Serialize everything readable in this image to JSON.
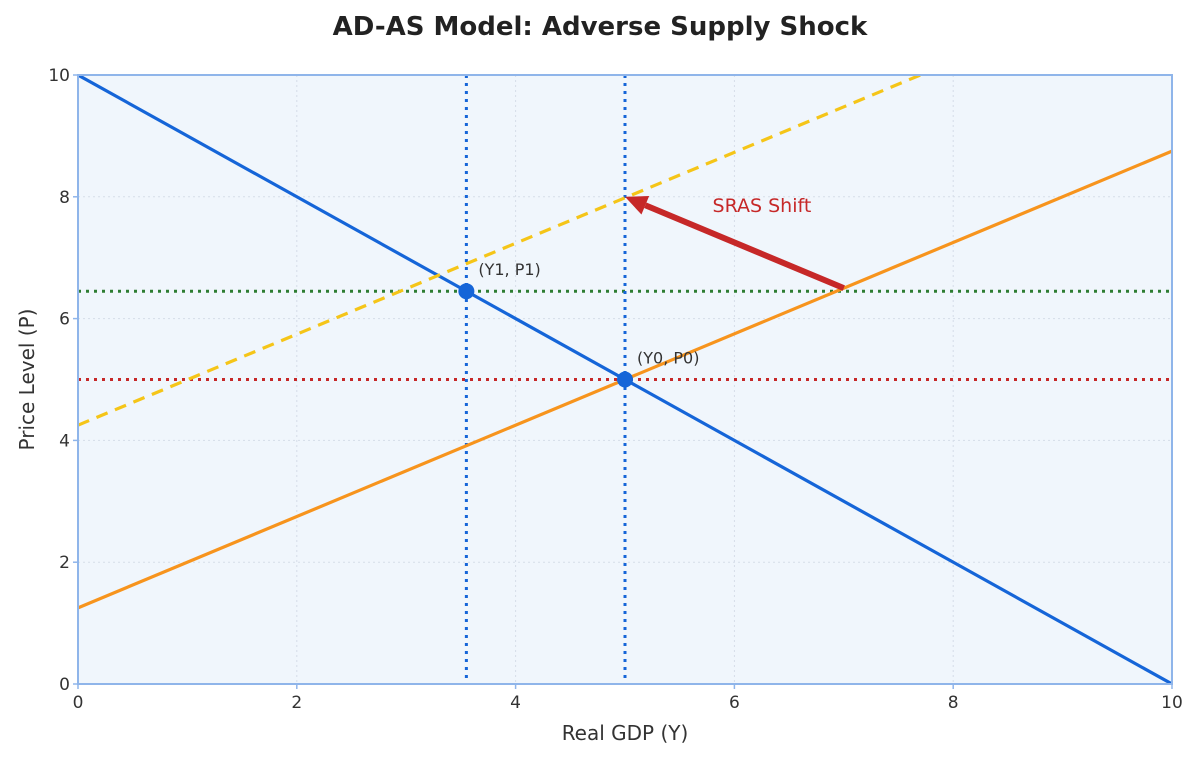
{
  "chart_data": {
    "type": "line",
    "title": "AD-AS Model: Adverse Supply Shock",
    "xlabel": "Real GDP (Y)",
    "ylabel": "Price Level (P)",
    "xlim": [
      0,
      10
    ],
    "ylim": [
      0,
      10
    ],
    "x_ticks": [
      "0",
      "2",
      "4",
      "6",
      "8",
      "10"
    ],
    "y_ticks": [
      "0",
      "2",
      "4",
      "6",
      "8",
      "10"
    ],
    "grid": true,
    "legend": "none",
    "series": [
      {
        "color": "#1565d8",
        "style": "solid",
        "x": [
          0,
          10
        ],
        "y": [
          10,
          0
        ]
      },
      {
        "color": "#f7941d",
        "style": "solid",
        "x": [
          0,
          10
        ],
        "y": [
          1.25,
          8.75
        ]
      },
      {
        "color": "#f5c518",
        "style": "dashed",
        "x": [
          0,
          7.7
        ],
        "y": [
          4.25,
          10
        ]
      }
    ],
    "reference_lines": [
      {
        "orientation": "horizontal",
        "value": 5.0,
        "color": "#c62828",
        "style": "dotted"
      },
      {
        "orientation": "horizontal",
        "value": 6.45,
        "color": "#2e7d32",
        "style": "dotted"
      },
      {
        "orientation": "vertical",
        "value": 5.0,
        "color": "#1565d8",
        "style": "dotted"
      },
      {
        "orientation": "vertical",
        "value": 3.55,
        "color": "#1565d8",
        "style": "dotted"
      }
    ],
    "points": [
      {
        "label": "(Y0, P0)",
        "x": 5.0,
        "y": 5.0,
        "color": "#1565d8"
      },
      {
        "label": "(Y1, P1)",
        "x": 3.55,
        "y": 6.45,
        "color": "#1565d8"
      }
    ],
    "annotations": [
      {
        "text": "SRAS Shift",
        "text_at": [
          5.8,
          7.75
        ],
        "arrow_from": [
          7.0,
          6.5
        ],
        "arrow_to": [
          5.0,
          8.0
        ],
        "color": "#c62828"
      }
    ],
    "plot_background": "#f0f6fc",
    "plot_border": "#8fb5ea"
  }
}
